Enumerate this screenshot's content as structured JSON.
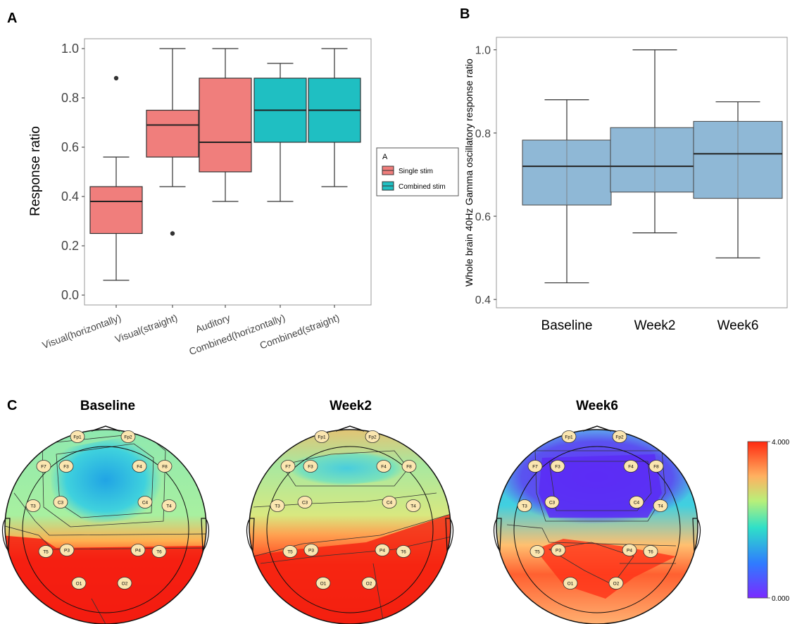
{
  "panel_labels": [
    "A",
    "B",
    "C"
  ],
  "chart_data": [
    {
      "type": "box",
      "panel": "A",
      "ylabel": "Response ratio",
      "ylim": [
        -0.04,
        1.04
      ],
      "yticks": [
        0.0,
        0.2,
        0.4,
        0.6,
        0.8,
        1.0
      ],
      "ytick_labels": [
        "0.0",
        "0.2",
        "0.4",
        "0.6",
        "0.8",
        "1.0"
      ],
      "categories": [
        "Visual(horizontally)",
        "Visual(straight)",
        "Auditory",
        "Combined(horizontally)",
        "Combined(straight)"
      ],
      "boxes": [
        {
          "category": "Visual(horizontally)",
          "group": "Single stim",
          "min": 0.06,
          "q1": 0.25,
          "median": 0.38,
          "q3": 0.44,
          "max": 0.56,
          "outliers": [
            0.88
          ]
        },
        {
          "category": "Visual(straight)",
          "group": "Single stim",
          "min": 0.44,
          "q1": 0.56,
          "median": 0.69,
          "q3": 0.75,
          "max": 1.0,
          "outliers": [
            0.25
          ]
        },
        {
          "category": "Auditory",
          "group": "Single stim",
          "min": 0.38,
          "q1": 0.5,
          "median": 0.62,
          "q3": 0.88,
          "max": 1.0,
          "outliers": []
        },
        {
          "category": "Combined(horizontally)",
          "group": "Combined stim",
          "min": 0.38,
          "q1": 0.62,
          "median": 0.75,
          "q3": 0.88,
          "max": 0.94,
          "outliers": []
        },
        {
          "category": "Combined(straight)",
          "group": "Combined stim",
          "min": 0.44,
          "q1": 0.62,
          "median": 0.75,
          "q3": 0.88,
          "max": 1.0,
          "outliers": []
        }
      ],
      "legend": {
        "title": "A",
        "position": "right",
        "entries": [
          {
            "label": "Single stim",
            "color": "#f07e7c"
          },
          {
            "label": "Combined stim",
            "color": "#1fbfc2"
          }
        ]
      },
      "grid": false
    },
    {
      "type": "box",
      "panel": "B",
      "ylabel": "Whole brain 40Hz Gamma oscillatory response ratio",
      "ylim": [
        0.38,
        1.03
      ],
      "yticks": [
        0.4,
        0.6,
        0.8,
        1.0
      ],
      "ytick_labels": [
        "0.4",
        "0.6",
        "0.8",
        "1.0"
      ],
      "categories": [
        "Baseline",
        "Week2",
        "Week6"
      ],
      "color": "#8fb8d6",
      "boxes": [
        {
          "category": "Baseline",
          "min": 0.44,
          "q1": 0.627,
          "median": 0.72,
          "q3": 0.783,
          "max": 0.88
        },
        {
          "category": "Week2",
          "min": 0.56,
          "q1": 0.658,
          "median": 0.72,
          "q3": 0.813,
          "max": 1.0
        },
        {
          "category": "Week6",
          "min": 0.5,
          "q1": 0.643,
          "median": 0.75,
          "q3": 0.828,
          "max": 0.875
        }
      ],
      "grid": false
    },
    {
      "type": "heatmap",
      "panel": "C",
      "maps": [
        {
          "title": "Baseline"
        },
        {
          "title": "Week2"
        },
        {
          "title": "Week6"
        }
      ],
      "electrodes": [
        "Fp1",
        "Fp2",
        "F7",
        "F3",
        "F4",
        "F8",
        "T3",
        "C3",
        "C4",
        "T4",
        "T5",
        "P3",
        "P4",
        "T6",
        "O1",
        "O2"
      ],
      "colorbar": {
        "min": 0.0,
        "max": 4.0,
        "min_label": "0.000",
        "max_label": "4.000",
        "colormap": "rainbow"
      }
    }
  ]
}
